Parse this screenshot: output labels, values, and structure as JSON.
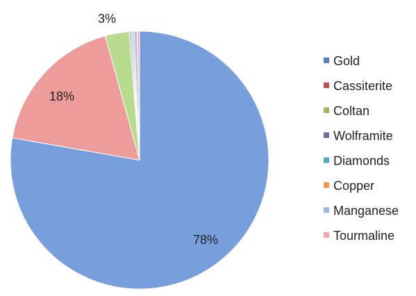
{
  "chart_data": {
    "type": "pie",
    "title": "",
    "slices": [
      {
        "label": "Gold",
        "value": 78,
        "display": "78%",
        "color": "#779fdb"
      },
      {
        "label": "Cassiterite",
        "value": 18,
        "display": "18%",
        "color": "#ee9b9b"
      },
      {
        "label": "Coltan",
        "value": 3,
        "display": "3%",
        "color": "#b8dc8d"
      },
      {
        "label": "Wolframite",
        "value": 0.2,
        "display": "",
        "color": "#b9a2d6"
      },
      {
        "label": "Diamonds",
        "value": 0.2,
        "display": "",
        "color": "#7fcde0"
      },
      {
        "label": "Copper",
        "value": 0.2,
        "display": "",
        "color": "#f6b27d"
      },
      {
        "label": "Manganese",
        "value": 0.4,
        "display": "",
        "color": "#aec5ef"
      },
      {
        "label": "Tourmaline",
        "value": 0.3,
        "display": "",
        "color": "#f3b5b8"
      }
    ],
    "legend": {
      "position": "right",
      "items": [
        "Gold",
        "Cassiterite",
        "Coltan",
        "Wolframite",
        "Diamonds",
        "Copper",
        "Manganese",
        "Tourmaline"
      ]
    },
    "legend_marker_colors": [
      "#4f81bd",
      "#c0504d",
      "#9bbb59",
      "#8064a2",
      "#4bacc6",
      "#f79646",
      "#9fb7e6",
      "#f2a7ab"
    ]
  }
}
